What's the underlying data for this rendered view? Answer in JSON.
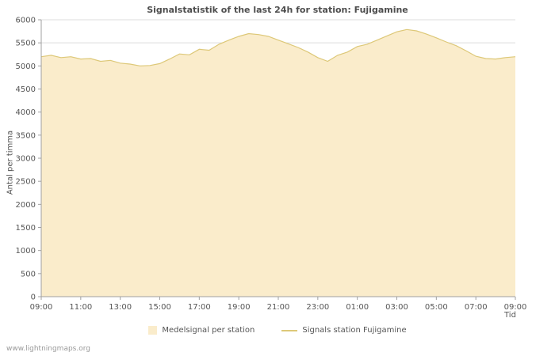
{
  "footer": "www.lightningmaps.org",
  "colors": {
    "area_fill": "#faeccb",
    "line": "#ddc878",
    "grid": "#dcdcdc",
    "axis": "#a0a0a0",
    "text": "#555555",
    "title_text": "#4d4d4d"
  },
  "chart_data": {
    "type": "area",
    "title": "Signalstatistik of the last 24h for station: Fujigamine",
    "xlabel": "Tid",
    "ylabel": "Antal per timma",
    "ylim": [
      0,
      6000
    ],
    "yticks": [
      0,
      500,
      1000,
      1500,
      2000,
      2500,
      3000,
      3500,
      4000,
      4500,
      5000,
      5500,
      6000
    ],
    "xtick_labels": [
      "09:00",
      "11:00",
      "13:00",
      "15:00",
      "17:00",
      "19:00",
      "21:00",
      "23:00",
      "01:00",
      "03:00",
      "05:00",
      "07:00",
      "09:00"
    ],
    "x_interval_minutes": 30,
    "grid": true,
    "legend_position": "bottom",
    "series": [
      {
        "name": "Medelsignal per station",
        "style": "area",
        "color": "#faeccb",
        "values": [
          5200,
          5230,
          5180,
          5200,
          5150,
          5160,
          5100,
          5120,
          5060,
          5040,
          5000,
          5010,
          5050,
          5150,
          5260,
          5240,
          5360,
          5340,
          5470,
          5560,
          5640,
          5700,
          5680,
          5640,
          5560,
          5480,
          5400,
          5300,
          5180,
          5100,
          5230,
          5300,
          5420,
          5470,
          5560,
          5650,
          5740,
          5790,
          5760,
          5690,
          5610,
          5520,
          5440,
          5330,
          5210,
          5160,
          5150,
          5180,
          5200
        ]
      },
      {
        "name": "Signals station Fujigamine",
        "style": "line",
        "color": "#ddc878",
        "overlaps_average": true
      }
    ]
  }
}
